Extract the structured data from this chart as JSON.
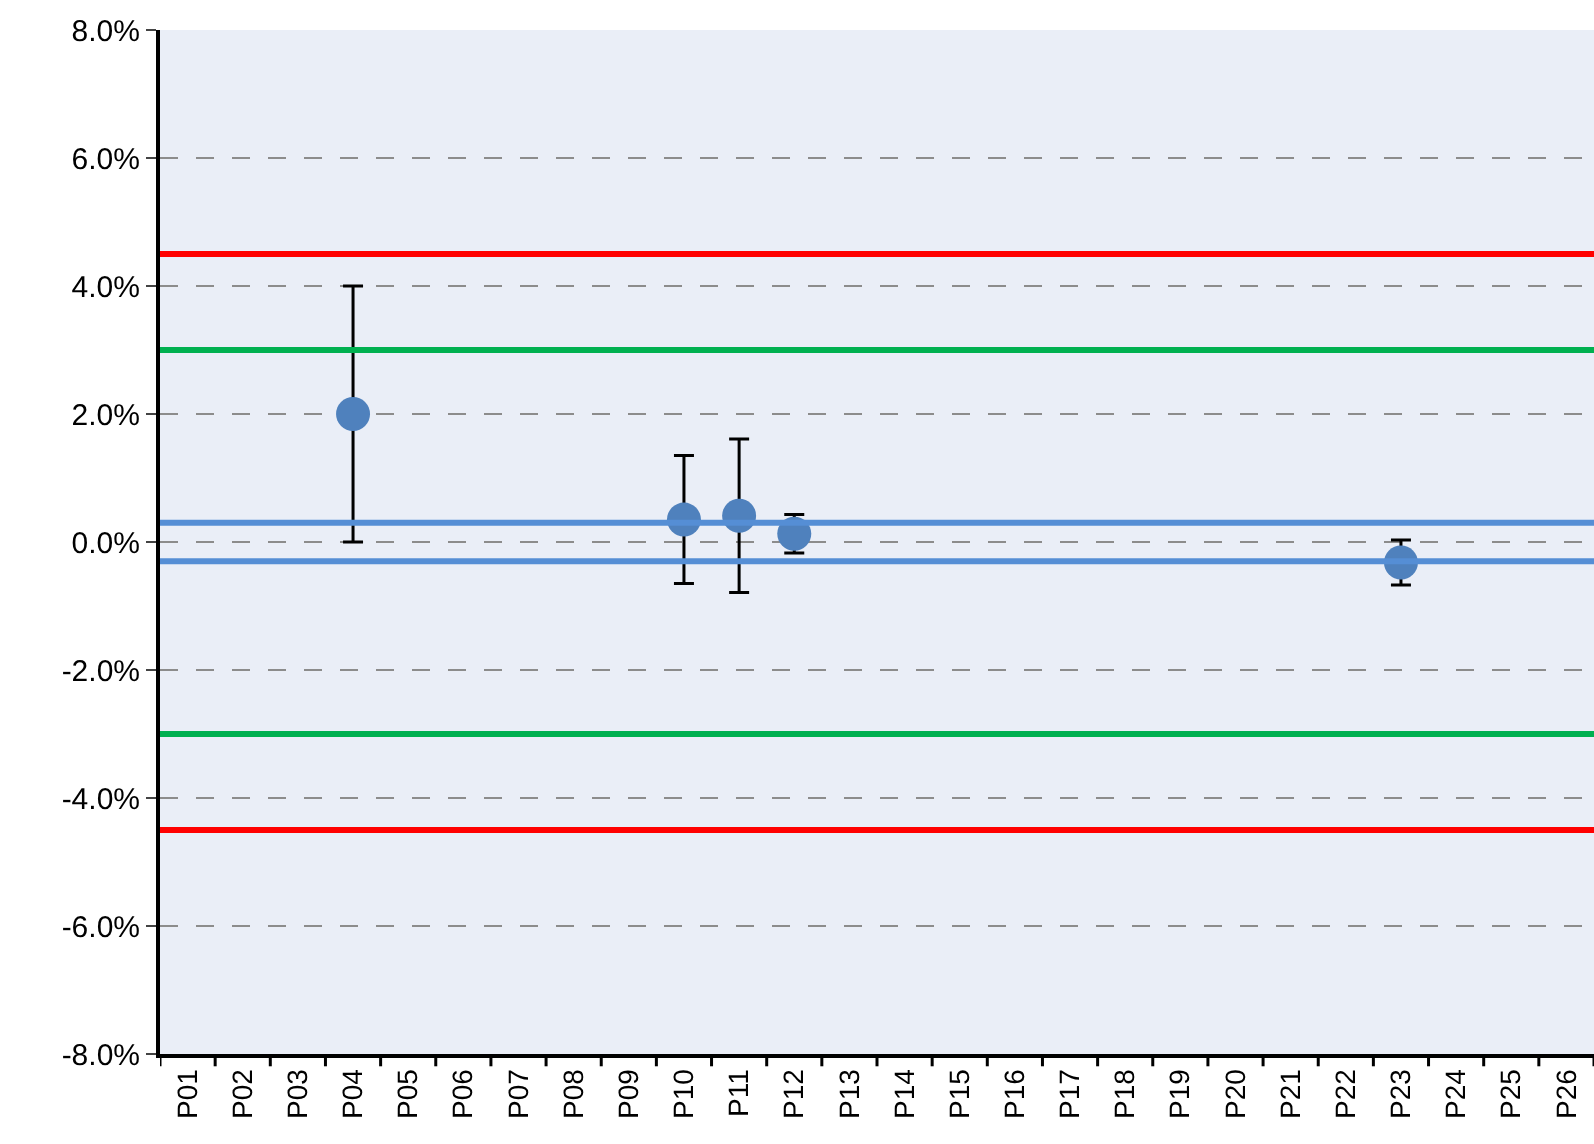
{
  "chart_data": {
    "type": "scatter",
    "categories": [
      "P01",
      "P02",
      "P03",
      "P04",
      "P05",
      "P06",
      "P07",
      "P08",
      "P09",
      "P10",
      "P11",
      "P12",
      "P13",
      "P14",
      "P15",
      "P16",
      "P17",
      "P18",
      "P19",
      "P20",
      "P21",
      "P22",
      "P23",
      "P24",
      "P25",
      "P26"
    ],
    "series": [
      {
        "color": "#4f81bd",
        "values": [
          null,
          null,
          null,
          2.0,
          null,
          null,
          null,
          null,
          null,
          0.35,
          0.41,
          0.13,
          null,
          null,
          null,
          null,
          null,
          null,
          null,
          null,
          null,
          null,
          -0.32,
          null,
          null,
          null
        ],
        "errors": [
          null,
          null,
          null,
          2.0,
          null,
          null,
          null,
          null,
          null,
          1.0,
          1.2,
          0.3,
          null,
          null,
          null,
          null,
          null,
          null,
          null,
          null,
          null,
          null,
          0.35,
          null,
          null,
          null
        ]
      }
    ],
    "ylim": [
      -8,
      8
    ],
    "yticks": [
      {
        "value": -8,
        "label": "-8.0%"
      },
      {
        "value": -6,
        "label": "-6.0%"
      },
      {
        "value": -4,
        "label": "-4.0%"
      },
      {
        "value": -2,
        "label": "-2.0%"
      },
      {
        "value": 0,
        "label": "0.0%"
      },
      {
        "value": 2,
        "label": "2.0%"
      },
      {
        "value": 4,
        "label": "4.0%"
      },
      {
        "value": 6,
        "label": "6.0%"
      },
      {
        "value": 8,
        "label": "8.0%"
      }
    ],
    "ref_lines": [
      {
        "axis": "y",
        "value": 4.5,
        "color": "#ff0000"
      },
      {
        "axis": "y",
        "value": -4.5,
        "color": "#ff0000"
      },
      {
        "axis": "y",
        "value": 3,
        "color": "#00b050"
      },
      {
        "axis": "y",
        "value": -3,
        "color": "#00b050"
      },
      {
        "axis": "y",
        "value": 0.3,
        "color": "#558ed5"
      },
      {
        "axis": "y",
        "value": -0.3,
        "color": "#558ed5"
      }
    ],
    "grid": "y",
    "marker": "circle",
    "legend": false
  }
}
